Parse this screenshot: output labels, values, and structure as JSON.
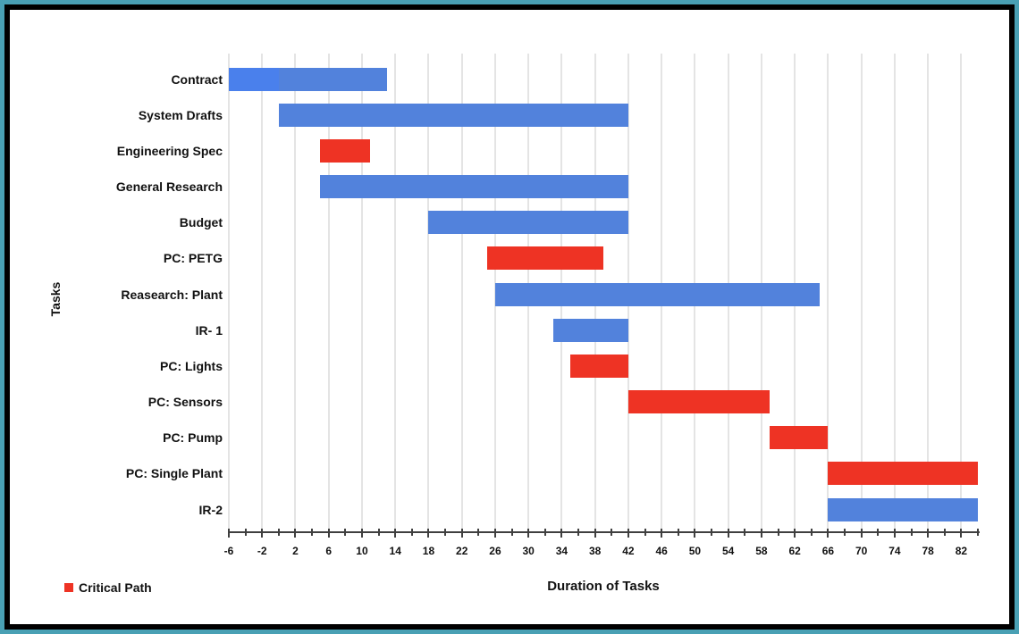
{
  "frame": {
    "outer_border_color": "#49A0B4",
    "inner_border_color": "#000000",
    "background": "#FFFFFF"
  },
  "chart_data": {
    "type": "bar",
    "variant": "gantt",
    "title": "",
    "xlabel": "Duration of Tasks",
    "ylabel": "Tasks",
    "xlim": [
      -6,
      84
    ],
    "grid": "vertical-major-only",
    "x_major_ticks": [
      -6,
      -2,
      2,
      6,
      10,
      14,
      18,
      22,
      26,
      30,
      34,
      38,
      42,
      46,
      50,
      54,
      58,
      62,
      66,
      70,
      74,
      78,
      82
    ],
    "x_minor_tick_step": 2,
    "palette": {
      "task": "#5282DC",
      "critical": "#EE3324",
      "contract_early_segment": "#4A80EC",
      "gridline": "#E4E4E4",
      "axis": "#3F3F3F"
    },
    "legend": {
      "position": "bottom-left",
      "items": [
        {
          "label": "Critical Path",
          "color": "#EE3324"
        }
      ]
    },
    "tasks": [
      {
        "label": "Contract",
        "start": -6,
        "end": 13,
        "critical": false,
        "segments": [
          {
            "start": -6,
            "end": 0,
            "color": "#4A80EC"
          },
          {
            "start": 0,
            "end": 13,
            "color": "#5282DC"
          }
        ]
      },
      {
        "label": "System Drafts",
        "start": 0,
        "end": 42,
        "critical": false
      },
      {
        "label": "Engineering Spec",
        "start": 5,
        "end": 11,
        "critical": true
      },
      {
        "label": "General Research",
        "start": 5,
        "end": 42,
        "critical": false
      },
      {
        "label": "Budget",
        "start": 18,
        "end": 42,
        "critical": false
      },
      {
        "label": "PC: PETG",
        "start": 25,
        "end": 39,
        "critical": true
      },
      {
        "label": "Reasearch: Plant",
        "start": 26,
        "end": 65,
        "critical": false
      },
      {
        "label": "IR- 1",
        "start": 33,
        "end": 42,
        "critical": false
      },
      {
        "label": "PC: Lights",
        "start": 35,
        "end": 42,
        "critical": true
      },
      {
        "label": "PC: Sensors",
        "start": 42,
        "end": 59,
        "critical": true
      },
      {
        "label": "PC: Pump",
        "start": 59,
        "end": 66,
        "critical": true
      },
      {
        "label": "PC: Single Plant",
        "start": 66,
        "end": 84,
        "critical": true
      },
      {
        "label": "IR-2",
        "start": 66,
        "end": 84,
        "critical": false
      }
    ]
  }
}
